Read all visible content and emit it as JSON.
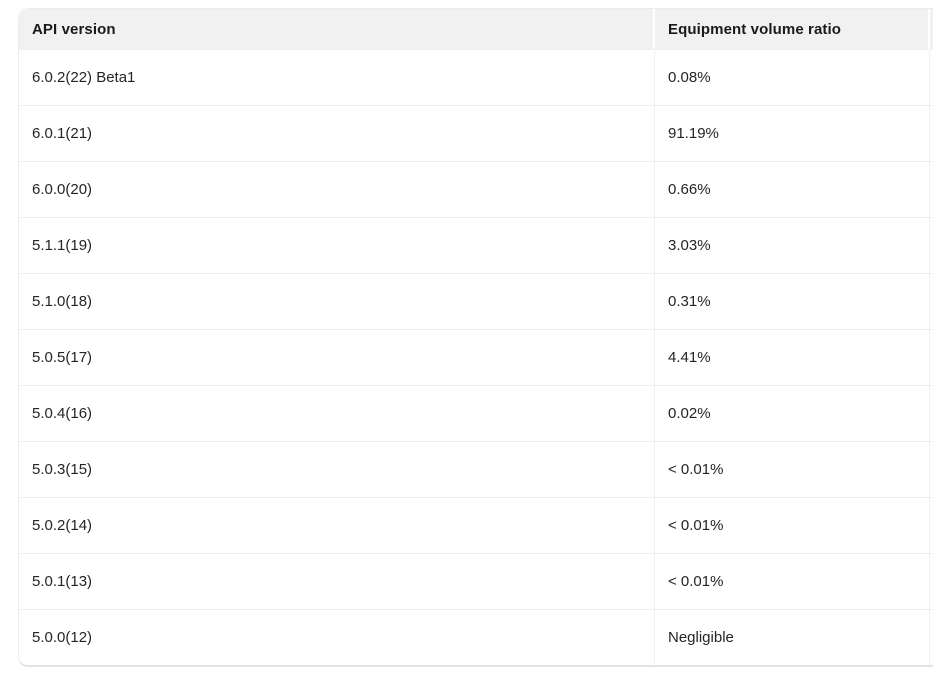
{
  "table": {
    "columns": [
      {
        "label": "API version"
      },
      {
        "label": "Equipment volume ratio"
      }
    ],
    "rows": [
      {
        "version": "6.0.2(22) Beta1",
        "ratio": "0.08%"
      },
      {
        "version": "6.0.1(21)",
        "ratio": "91.19%"
      },
      {
        "version": "6.0.0(20)",
        "ratio": "0.66%"
      },
      {
        "version": "5.1.1(19)",
        "ratio": "3.03%"
      },
      {
        "version": "5.1.0(18)",
        "ratio": "0.31%"
      },
      {
        "version": "5.0.5(17)",
        "ratio": "4.41%"
      },
      {
        "version": "5.0.4(16)",
        "ratio": "0.02%"
      },
      {
        "version": "5.0.3(15)",
        "ratio": "< 0.01%"
      },
      {
        "version": "5.0.2(14)",
        "ratio": "< 0.01%"
      },
      {
        "version": "5.0.1(13)",
        "ratio": "< 0.01%"
      },
      {
        "version": "5.0.0(12)",
        "ratio": "Negligible"
      }
    ],
    "colors": {
      "header_bg": "#f1f1f1",
      "header_text": "#1a1a1a",
      "cell_text": "#242424",
      "row_divider": "#efefef",
      "outer_border": "#ececec"
    }
  }
}
